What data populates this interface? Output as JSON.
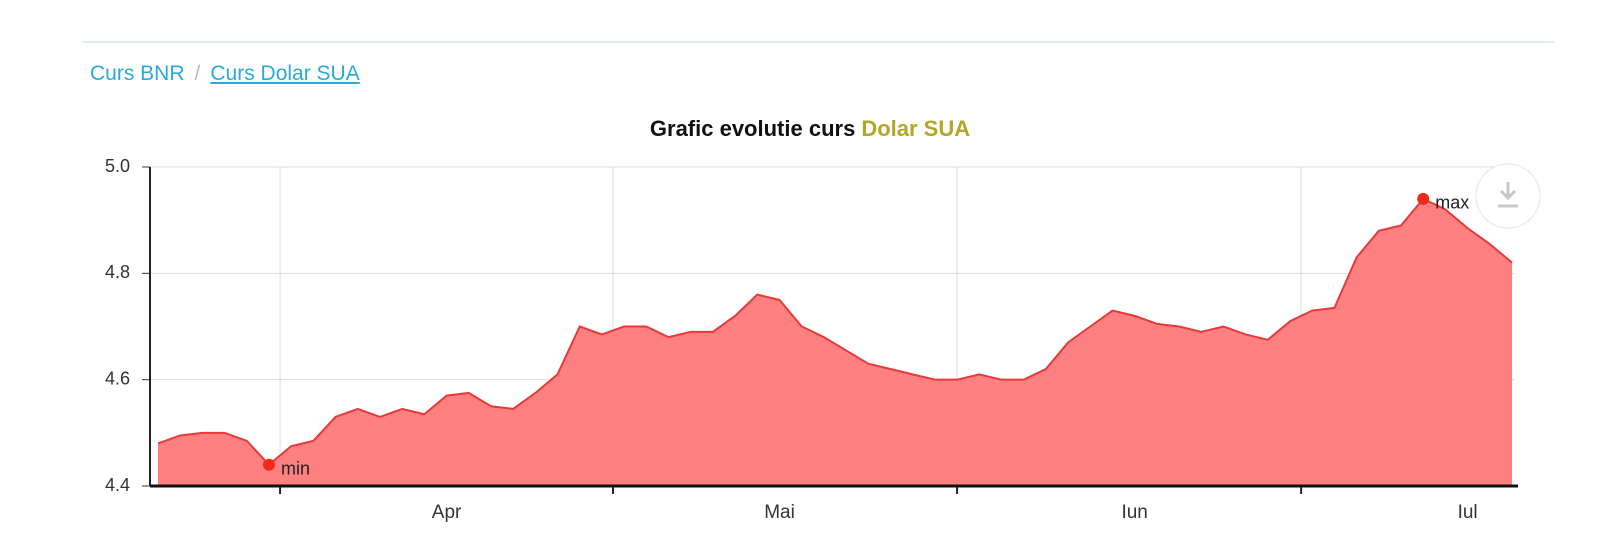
{
  "breadcrumb": [
    "Curs BNR",
    "Curs Dolar SUA"
  ],
  "chart_data": {
    "type": "area",
    "title": "Grafic evolutie curs",
    "title_highlight": "Dolar SUA",
    "categories": [
      null,
      null,
      null,
      null,
      null,
      null,
      null,
      null,
      null,
      null,
      null,
      null,
      null,
      "Apr",
      null,
      null,
      null,
      null,
      null,
      null,
      null,
      null,
      null,
      null,
      null,
      null,
      null,
      null,
      "Mai",
      null,
      null,
      null,
      null,
      null,
      null,
      null,
      null,
      null,
      null,
      null,
      null,
      null,
      null,
      null,
      "Iun",
      null,
      null,
      null,
      null,
      null,
      null,
      null,
      null,
      null,
      null,
      null,
      null,
      null,
      null,
      "Iul",
      null,
      null
    ],
    "series": [
      {
        "name": "Dolar SUA",
        "color": "#e83a3a",
        "fill": "#ff8080",
        "values": [
          4.48,
          4.495,
          4.5,
          4.5,
          4.485,
          4.44,
          4.475,
          4.485,
          4.53,
          4.545,
          4.53,
          4.545,
          4.535,
          4.57,
          4.575,
          4.55,
          4.545,
          4.575,
          4.61,
          4.7,
          4.685,
          4.7,
          4.7,
          4.68,
          4.69,
          4.69,
          4.72,
          4.76,
          4.75,
          4.7,
          4.68,
          4.655,
          4.63,
          4.62,
          4.61,
          4.6,
          4.6,
          4.61,
          4.6,
          4.6,
          4.62,
          4.67,
          4.7,
          4.73,
          4.72,
          4.705,
          4.7,
          4.69,
          4.7,
          4.685,
          4.675,
          4.71,
          4.73,
          4.735,
          4.83,
          4.88,
          4.89,
          4.94,
          4.92,
          4.885,
          4.855,
          4.82
        ]
      }
    ],
    "min_label": "min",
    "max_label": "max",
    "ylim": [
      4.4,
      5
    ],
    "yticks": [
      4.4,
      4.6,
      4.8,
      {
        "value": 5,
        "label": "5.0"
      }
    ],
    "grid": true
  }
}
